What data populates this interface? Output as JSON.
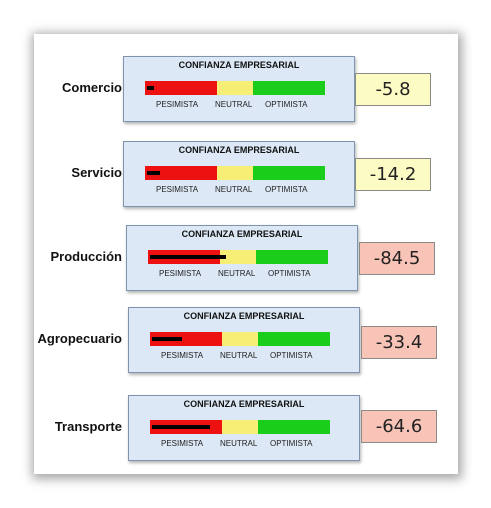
{
  "labels": {
    "card_title": "CONFIANZA EMPRESARIAL",
    "pesimista": "PESIMISTA",
    "neutral": "NEUTRAL",
    "optimista": "OPTIMISTA"
  },
  "scale": {
    "min": -100,
    "max": 100,
    "pesimista_max": -20,
    "neutral_max": 20
  },
  "colors": {
    "pesimista": "#ee1111",
    "neutral": "#f7ef75",
    "optimista": "#1acd1a",
    "value_neutral_bg": "#fdfbc4",
    "value_negative_bg": "#f9c4b8"
  },
  "sectors": [
    {
      "name": "Comercio",
      "value": -5.8,
      "display": "-5.8"
    },
    {
      "name": "Servicio",
      "value": -14.2,
      "display": "-14.2"
    },
    {
      "name": "Producción",
      "value": -84.5,
      "display": "-84.5"
    },
    {
      "name": "Agropecuario",
      "value": -33.4,
      "display": "-33.4"
    },
    {
      "name": "Transporte",
      "value": -64.6,
      "display": "-64.6"
    }
  ]
}
